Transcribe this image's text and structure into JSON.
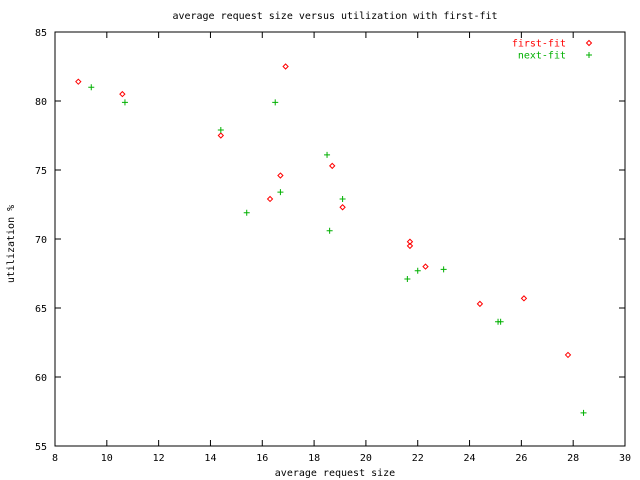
{
  "chart_data": {
    "type": "scatter",
    "title": "average request size versus utilization with first-fit",
    "xlabel": "average request size",
    "ylabel": "utilization %",
    "xlim": [
      8,
      30
    ],
    "ylim": [
      55,
      85
    ],
    "x_ticks": [
      8,
      10,
      12,
      14,
      16,
      18,
      20,
      22,
      24,
      26,
      28,
      30
    ],
    "y_ticks": [
      55,
      60,
      65,
      70,
      75,
      80,
      85
    ],
    "grid": false,
    "legend_position": "top-right",
    "series": [
      {
        "name": "first-fit",
        "marker": "diamond",
        "color": "#ff0000",
        "points": [
          {
            "x": 8.9,
            "y": 81.4
          },
          {
            "x": 10.6,
            "y": 80.5
          },
          {
            "x": 14.4,
            "y": 77.5
          },
          {
            "x": 16.3,
            "y": 72.9
          },
          {
            "x": 16.7,
            "y": 74.6
          },
          {
            "x": 16.9,
            "y": 82.5
          },
          {
            "x": 18.7,
            "y": 75.3
          },
          {
            "x": 19.1,
            "y": 72.3
          },
          {
            "x": 21.7,
            "y": 69.8
          },
          {
            "x": 21.7,
            "y": 69.5
          },
          {
            "x": 22.3,
            "y": 68.0
          },
          {
            "x": 24.4,
            "y": 65.3
          },
          {
            "x": 26.1,
            "y": 65.7
          },
          {
            "x": 27.8,
            "y": 61.6
          }
        ]
      },
      {
        "name": "next-fit",
        "marker": "plus",
        "color": "#00b000",
        "points": [
          {
            "x": 9.4,
            "y": 81.0
          },
          {
            "x": 10.7,
            "y": 79.9
          },
          {
            "x": 14.4,
            "y": 77.9
          },
          {
            "x": 15.4,
            "y": 71.9
          },
          {
            "x": 16.5,
            "y": 79.9
          },
          {
            "x": 16.7,
            "y": 73.4
          },
          {
            "x": 18.5,
            "y": 76.1
          },
          {
            "x": 18.6,
            "y": 70.6
          },
          {
            "x": 19.1,
            "y": 72.9
          },
          {
            "x": 21.6,
            "y": 67.1
          },
          {
            "x": 22.0,
            "y": 67.7
          },
          {
            "x": 23.0,
            "y": 67.8
          },
          {
            "x": 25.1,
            "y": 64.0
          },
          {
            "x": 25.2,
            "y": 64.0
          },
          {
            "x": 28.4,
            "y": 57.4
          }
        ]
      }
    ]
  }
}
